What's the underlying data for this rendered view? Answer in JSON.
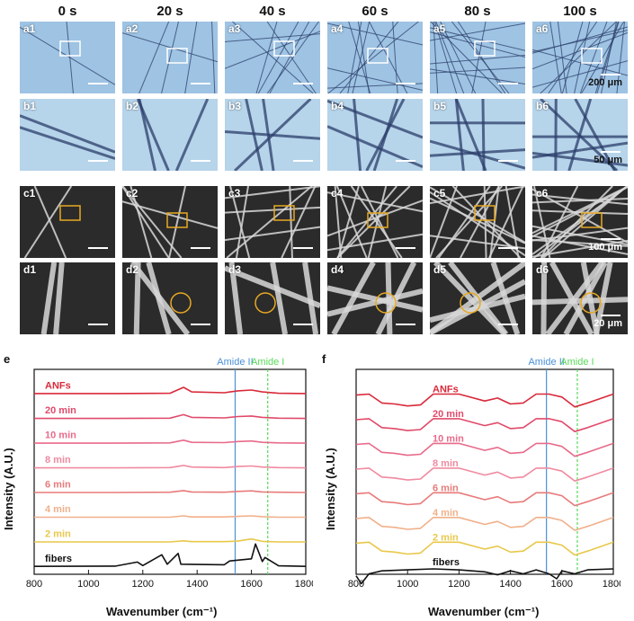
{
  "times": [
    "0 s",
    "20 s",
    "40 s",
    "60 s",
    "80 s",
    "100 s"
  ],
  "rows": {
    "a": {
      "letter": "a",
      "scale": "200 μm"
    },
    "b": {
      "letter": "b",
      "scale": "50 μm"
    },
    "c": {
      "letter": "c",
      "scale": "100 μm"
    },
    "d": {
      "letter": "d",
      "scale": "20 μm"
    }
  },
  "tile_labels": {
    "a": [
      "a1",
      "a2",
      "a3",
      "a4",
      "a5",
      "a6"
    ],
    "b": [
      "b1",
      "b2",
      "b3",
      "b4",
      "b5",
      "b6"
    ],
    "c": [
      "c1",
      "c2",
      "c3",
      "c4",
      "c5",
      "c6"
    ],
    "d": [
      "d1",
      "d2",
      "d3",
      "d4",
      "d5",
      "d6"
    ]
  },
  "colors": {
    "optical_bg": "#9ec3e3",
    "sem_bg": "#2b2b2b",
    "highlight_box_optical": "#ffffff",
    "highlight_box_sem": "#e8a923",
    "amide_ii": "#4a90d9",
    "amide_i": "#5ad85a"
  },
  "chart_data": [
    {
      "panel": "e",
      "type": "line",
      "xlabel": "Wavenumber (cm⁻¹)",
      "ylabel": "Intensity (A.U.)",
      "xlim": [
        800,
        1800
      ],
      "xticks": [
        800,
        1000,
        1200,
        1400,
        1600,
        1800
      ],
      "markers": [
        {
          "label": "Amide II",
          "x": 1540,
          "color": "#4a90d9"
        },
        {
          "label": "Amide I",
          "x": 1660,
          "color": "#5ad85a"
        }
      ],
      "series": [
        {
          "name": "ANFs",
          "color": "#d9293a",
          "x": [
            800,
            1100,
            1300,
            1350,
            1380,
            1500,
            1550,
            1600,
            1640,
            1700,
            1800
          ],
          "y": [
            0.02,
            0.02,
            0.03,
            0.25,
            0.08,
            0.05,
            0.12,
            0.15,
            0.08,
            0.03,
            0.02
          ]
        },
        {
          "name": "20 min",
          "color": "#e04a6a",
          "x": [
            800,
            1100,
            1300,
            1350,
            1380,
            1500,
            1550,
            1600,
            1640,
            1700,
            1800
          ],
          "y": [
            0.01,
            0.01,
            0.02,
            0.15,
            0.05,
            0.03,
            0.08,
            0.1,
            0.05,
            0.02,
            0.01
          ]
        },
        {
          "name": "10 min",
          "color": "#e86a8a",
          "x": [
            800,
            1100,
            1300,
            1350,
            1380,
            1500,
            1550,
            1600,
            1640,
            1700,
            1800
          ],
          "y": [
            0.01,
            0.01,
            0.02,
            0.12,
            0.04,
            0.03,
            0.07,
            0.09,
            0.04,
            0.02,
            0.01
          ]
        },
        {
          "name": "8 min",
          "color": "#f08aa0",
          "x": [
            800,
            1100,
            1300,
            1350,
            1380,
            1500,
            1550,
            1600,
            1640,
            1700,
            1800
          ],
          "y": [
            0.01,
            0.01,
            0.02,
            0.1,
            0.04,
            0.02,
            0.06,
            0.08,
            0.04,
            0.02,
            0.01
          ]
        },
        {
          "name": "6 min",
          "color": "#e87a7a",
          "x": [
            800,
            1100,
            1300,
            1350,
            1380,
            1500,
            1550,
            1600,
            1640,
            1700,
            1800
          ],
          "y": [
            0.01,
            0.01,
            0.02,
            0.08,
            0.03,
            0.02,
            0.05,
            0.07,
            0.03,
            0.02,
            0.01
          ]
        },
        {
          "name": "4 min",
          "color": "#f0b08a",
          "x": [
            800,
            1100,
            1300,
            1350,
            1380,
            1500,
            1550,
            1600,
            1640,
            1700,
            1800
          ],
          "y": [
            0.01,
            0.01,
            0.01,
            0.06,
            0.02,
            0.02,
            0.04,
            0.06,
            0.03,
            0.01,
            0.01
          ]
        },
        {
          "name": "2 min",
          "color": "#e8c84a",
          "x": [
            800,
            1100,
            1300,
            1350,
            1380,
            1500,
            1550,
            1600,
            1640,
            1700,
            1800
          ],
          "y": [
            0.01,
            0.01,
            0.01,
            0.05,
            0.02,
            0.02,
            0.04,
            0.12,
            0.03,
            0.01,
            0.01
          ]
        },
        {
          "name": "fibers",
          "color": "#111111",
          "x": [
            800,
            1100,
            1180,
            1200,
            1270,
            1290,
            1330,
            1340,
            1500,
            1520,
            1600,
            1615,
            1640,
            1650,
            1700,
            1800
          ],
          "y": [
            0.02,
            0.03,
            0.18,
            0.05,
            0.45,
            0.1,
            0.5,
            0.1,
            0.08,
            0.22,
            0.3,
            0.85,
            0.2,
            0.35,
            0.04,
            0.02
          ]
        }
      ]
    },
    {
      "panel": "f",
      "type": "line",
      "xlabel": "Wavenumber (cm⁻¹)",
      "ylabel": "Intensity (A.U.)",
      "xlim": [
        800,
        1800
      ],
      "xticks": [
        800,
        1000,
        1200,
        1400,
        1600,
        1800
      ],
      "markers": [
        {
          "label": "Amide II",
          "x": 1540,
          "color": "#4a90d9"
        },
        {
          "label": "Amide I",
          "x": 1660,
          "color": "#5ad85a"
        }
      ],
      "series": [
        {
          "name": "ANFs",
          "color": "#d9293a",
          "x": [
            800,
            850,
            900,
            950,
            1000,
            1050,
            1100,
            1200,
            1300,
            1350,
            1400,
            1450,
            1500,
            1550,
            1600,
            1650,
            1700,
            1800
          ],
          "y": [
            0.9,
            0.95,
            0.5,
            0.45,
            0.35,
            0.4,
            0.95,
            0.95,
            0.6,
            0.75,
            0.45,
            0.5,
            0.95,
            0.95,
            0.8,
            0.3,
            0.5,
            0.95
          ]
        },
        {
          "name": "20 min",
          "color": "#e04a6a",
          "x": [
            800,
            850,
            900,
            950,
            1000,
            1050,
            1100,
            1200,
            1300,
            1350,
            1400,
            1450,
            1500,
            1550,
            1600,
            1650,
            1700,
            1800
          ],
          "y": [
            0.9,
            0.95,
            0.5,
            0.45,
            0.35,
            0.4,
            0.95,
            0.95,
            0.6,
            0.75,
            0.45,
            0.5,
            0.95,
            0.95,
            0.8,
            0.3,
            0.5,
            0.95
          ]
        },
        {
          "name": "10 min",
          "color": "#e86a8a",
          "x": [
            800,
            850,
            900,
            950,
            1000,
            1050,
            1100,
            1200,
            1300,
            1350,
            1400,
            1450,
            1500,
            1550,
            1600,
            1650,
            1700,
            1800
          ],
          "y": [
            0.9,
            0.95,
            0.5,
            0.45,
            0.35,
            0.4,
            0.95,
            0.95,
            0.6,
            0.75,
            0.45,
            0.5,
            0.95,
            0.95,
            0.8,
            0.3,
            0.5,
            0.95
          ]
        },
        {
          "name": "8 min",
          "color": "#f08aa0",
          "x": [
            800,
            850,
            900,
            950,
            1000,
            1050,
            1100,
            1200,
            1300,
            1350,
            1400,
            1450,
            1500,
            1550,
            1600,
            1650,
            1700,
            1800
          ],
          "y": [
            0.9,
            0.95,
            0.5,
            0.45,
            0.35,
            0.4,
            0.95,
            0.95,
            0.6,
            0.75,
            0.45,
            0.5,
            0.95,
            0.95,
            0.8,
            0.3,
            0.5,
            0.95
          ]
        },
        {
          "name": "6 min",
          "color": "#e87a7a",
          "x": [
            800,
            850,
            900,
            950,
            1000,
            1050,
            1100,
            1200,
            1300,
            1350,
            1400,
            1450,
            1500,
            1550,
            1600,
            1650,
            1700,
            1800
          ],
          "y": [
            0.9,
            0.95,
            0.5,
            0.45,
            0.35,
            0.4,
            0.95,
            0.95,
            0.6,
            0.75,
            0.45,
            0.5,
            0.95,
            0.95,
            0.8,
            0.3,
            0.5,
            0.95
          ]
        },
        {
          "name": "4 min",
          "color": "#f0b08a",
          "x": [
            800,
            850,
            900,
            950,
            1000,
            1050,
            1100,
            1200,
            1300,
            1350,
            1400,
            1450,
            1500,
            1550,
            1600,
            1650,
            1700,
            1800
          ],
          "y": [
            0.9,
            0.95,
            0.5,
            0.45,
            0.35,
            0.4,
            0.95,
            0.95,
            0.6,
            0.75,
            0.45,
            0.5,
            0.95,
            0.95,
            0.8,
            0.3,
            0.5,
            0.95
          ]
        },
        {
          "name": "2 min",
          "color": "#e8c84a",
          "x": [
            800,
            850,
            900,
            950,
            1000,
            1050,
            1100,
            1200,
            1300,
            1350,
            1400,
            1450,
            1500,
            1550,
            1600,
            1650,
            1700,
            1800
          ],
          "y": [
            0.9,
            0.95,
            0.5,
            0.45,
            0.35,
            0.4,
            0.95,
            0.95,
            0.6,
            0.75,
            0.45,
            0.5,
            0.95,
            0.95,
            0.8,
            0.3,
            0.5,
            0.95
          ]
        },
        {
          "name": "fibers",
          "color": "#111111",
          "x": [
            800,
            820,
            850,
            900,
            1000,
            1100,
            1200,
            1300,
            1350,
            1400,
            1450,
            1500,
            1550,
            1580,
            1600,
            1650,
            1700,
            1800
          ],
          "y": [
            0.5,
            0.1,
            0.6,
            0.75,
            0.8,
            0.85,
            0.8,
            0.7,
            0.55,
            0.75,
            0.6,
            0.8,
            0.6,
            0.35,
            0.75,
            0.6,
            0.8,
            0.85
          ]
        }
      ]
    }
  ]
}
